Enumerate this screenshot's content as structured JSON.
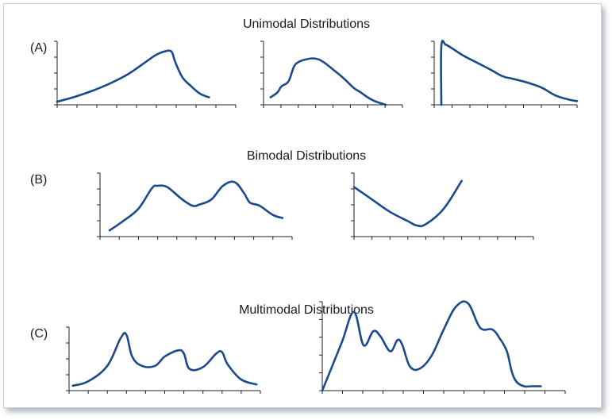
{
  "colors": {
    "curve": "#1a4a8a",
    "axis": "#222222",
    "panel_border": "#c8cfd6"
  },
  "rows": [
    {
      "title": "Unimodal Distributions",
      "label": "(A)"
    },
    {
      "title": "Bimodal Distributions",
      "label": "(B)"
    },
    {
      "title": "Multimodal Distributions",
      "label": "(C)"
    }
  ],
  "chart_data": [
    {
      "type": "line",
      "group": "Unimodal Distributions",
      "ylim": [
        0,
        1
      ],
      "x": [
        0,
        0.1,
        0.2,
        0.3,
        0.4,
        0.5,
        0.55,
        0.6,
        0.64,
        0.66,
        0.7,
        0.75,
        0.8,
        0.85
      ],
      "y": [
        0.05,
        0.13,
        0.23,
        0.35,
        0.5,
        0.7,
        0.8,
        0.86,
        0.86,
        0.7,
        0.45,
        0.3,
        0.18,
        0.12
      ]
    },
    {
      "type": "line",
      "group": "Unimodal Distributions",
      "ylim": [
        0,
        1
      ],
      "x": [
        0.05,
        0.1,
        0.13,
        0.18,
        0.22,
        0.26,
        0.3,
        0.35,
        0.4,
        0.45,
        0.5,
        0.55,
        0.6,
        0.65,
        0.7,
        0.75,
        0.8,
        0.85,
        0.88
      ],
      "y": [
        0.12,
        0.2,
        0.3,
        0.38,
        0.62,
        0.7,
        0.73,
        0.75,
        0.73,
        0.66,
        0.57,
        0.48,
        0.38,
        0.27,
        0.2,
        0.12,
        0.06,
        0.02,
        0.0
      ]
    },
    {
      "type": "line",
      "group": "Unimodal Distributions",
      "ylim": [
        0,
        1
      ],
      "x": [
        0.05,
        0.05,
        0.08,
        0.12,
        0.2,
        0.3,
        0.4,
        0.48,
        0.55,
        0.65,
        0.75,
        0.85,
        0.95,
        1.0
      ],
      "y": [
        0.0,
        0.95,
        0.97,
        0.92,
        0.8,
        0.68,
        0.56,
        0.46,
        0.42,
        0.36,
        0.28,
        0.15,
        0.08,
        0.06
      ]
    },
    {
      "type": "line",
      "group": "Bimodal Distributions",
      "ylim": [
        0,
        1
      ],
      "x": [
        0.05,
        0.12,
        0.2,
        0.27,
        0.3,
        0.35,
        0.42,
        0.48,
        0.52,
        0.58,
        0.64,
        0.7,
        0.75,
        0.78,
        0.83,
        0.9,
        0.95
      ],
      "y": [
        0.1,
        0.25,
        0.45,
        0.78,
        0.82,
        0.8,
        0.62,
        0.5,
        0.52,
        0.6,
        0.82,
        0.88,
        0.7,
        0.55,
        0.5,
        0.35,
        0.3
      ]
    },
    {
      "type": "line",
      "group": "Bimodal Distributions",
      "ylim": [
        0,
        1
      ],
      "x": [
        0.0,
        0.1,
        0.2,
        0.3,
        0.35,
        0.4,
        0.5,
        0.6
      ],
      "y": [
        0.8,
        0.6,
        0.4,
        0.25,
        0.18,
        0.2,
        0.45,
        0.9
      ]
    },
    {
      "type": "line",
      "group": "Multimodal Distributions",
      "ylim": [
        0,
        1
      ],
      "x": [
        0.02,
        0.1,
        0.2,
        0.27,
        0.3,
        0.33,
        0.38,
        0.45,
        0.5,
        0.57,
        0.6,
        0.63,
        0.7,
        0.77,
        0.8,
        0.83,
        0.9,
        0.98
      ],
      "y": [
        0.08,
        0.15,
        0.4,
        0.85,
        0.9,
        0.55,
        0.4,
        0.4,
        0.55,
        0.65,
        0.6,
        0.35,
        0.38,
        0.6,
        0.62,
        0.42,
        0.18,
        0.1
      ]
    },
    {
      "type": "line",
      "group": "Multimodal Distributions",
      "ylim": [
        0,
        1
      ],
      "x": [
        0.0,
        0.08,
        0.13,
        0.17,
        0.21,
        0.24,
        0.28,
        0.31,
        0.33,
        0.36,
        0.4,
        0.45,
        0.5,
        0.55,
        0.6,
        0.65,
        0.7,
        0.73,
        0.76,
        0.78,
        0.8,
        0.83,
        0.86,
        0.9
      ],
      "y": [
        0.0,
        0.55,
        0.9,
        0.52,
        0.68,
        0.62,
        0.45,
        0.58,
        0.52,
        0.28,
        0.25,
        0.4,
        0.7,
        0.96,
        1.0,
        0.72,
        0.7,
        0.6,
        0.45,
        0.22,
        0.1,
        0.05,
        0.05,
        0.05
      ]
    }
  ]
}
